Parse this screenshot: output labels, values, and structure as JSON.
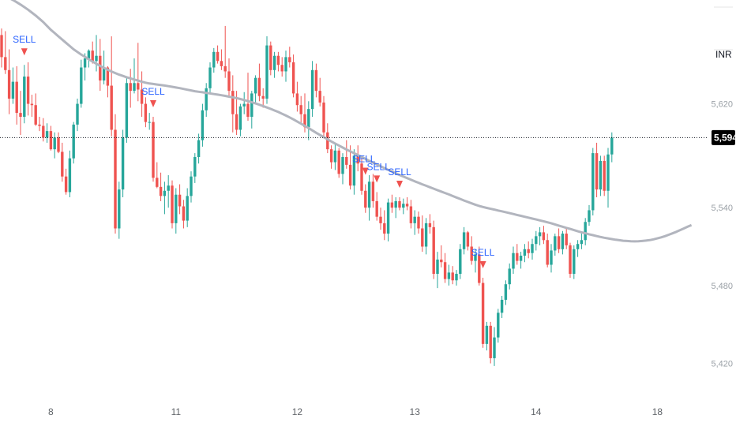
{
  "chart_data": {
    "type": "candlestick",
    "currency": "INR",
    "ylim": [
      5396,
      5700
    ],
    "y_ticks": [
      "5,620",
      "5,540",
      "5,480",
      "5,420"
    ],
    "y_tick_values": [
      5620,
      5540,
      5480,
      5420
    ],
    "x_ticks": [
      "8",
      "11",
      "12",
      "13",
      "14",
      "18"
    ],
    "x_tick_index": [
      13,
      46,
      78,
      109,
      141,
      173
    ],
    "last_price": 5594,
    "last_price_label": "5,594",
    "sell_label": "SELL",
    "sell_signal_index": [
      6,
      40,
      96,
      99,
      105,
      127
    ],
    "sell_label_shift": [
      0,
      0,
      -2,
      2,
      0,
      0
    ],
    "colors": {
      "up": "#26a69a",
      "down": "#ef5350",
      "ma": "#b2b5be",
      "signal": "#2962ff",
      "last_bg": "#000000"
    },
    "candles": [
      [
        5673,
        5678,
        5648,
        5656
      ],
      [
        5656,
        5676,
        5643,
        5646
      ],
      [
        5646,
        5662,
        5612,
        5624
      ],
      [
        5624,
        5648,
        5620,
        5637
      ],
      [
        5637,
        5649,
        5604,
        5613
      ],
      [
        5613,
        5630,
        5596,
        5610
      ],
      [
        5610,
        5650,
        5605,
        5641
      ],
      [
        5641,
        5652,
        5611,
        5620
      ],
      [
        5620,
        5627,
        5610,
        5619
      ],
      [
        5619,
        5628,
        5603,
        5604
      ],
      [
        5604,
        5610,
        5599,
        5603
      ],
      [
        5603,
        5609,
        5591,
        5594
      ],
      [
        5594,
        5605,
        5590,
        5599
      ],
      [
        5599,
        5603,
        5584,
        5585
      ],
      [
        5585,
        5598,
        5578,
        5594
      ],
      [
        5594,
        5598,
        5582,
        5583
      ],
      [
        5583,
        5590,
        5560,
        5564
      ],
      [
        5564,
        5570,
        5550,
        5552
      ],
      [
        5552,
        5584,
        5548,
        5578
      ],
      [
        5578,
        5606,
        5574,
        5604
      ],
      [
        5604,
        5624,
        5599,
        5620
      ],
      [
        5620,
        5654,
        5617,
        5648
      ],
      [
        5648,
        5659,
        5638,
        5655
      ],
      [
        5655,
        5662,
        5648,
        5661
      ],
      [
        5661,
        5668,
        5651,
        5653
      ],
      [
        5653,
        5673,
        5645,
        5657
      ],
      [
        5657,
        5670,
        5630,
        5638
      ],
      [
        5638,
        5661,
        5635,
        5648
      ],
      [
        5648,
        5649,
        5625,
        5634
      ],
      [
        5634,
        5672,
        5595,
        5600
      ],
      [
        5600,
        5612,
        5520,
        5524
      ],
      [
        5524,
        5560,
        5516,
        5554
      ],
      [
        5554,
        5600,
        5548,
        5594
      ],
      [
        5594,
        5640,
        5590,
        5636
      ],
      [
        5636,
        5647,
        5617,
        5630
      ],
      [
        5630,
        5655,
        5628,
        5636
      ],
      [
        5636,
        5667,
        5622,
        5631
      ],
      [
        5631,
        5645,
        5610,
        5620
      ],
      [
        5620,
        5625,
        5602,
        5606
      ],
      [
        5606,
        5613,
        5600,
        5606
      ],
      [
        5606,
        5610,
        5560,
        5563
      ],
      [
        5563,
        5575,
        5555,
        5556
      ],
      [
        5556,
        5567,
        5545,
        5549
      ],
      [
        5549,
        5560,
        5535,
        5553
      ],
      [
        5553,
        5565,
        5540,
        5557
      ],
      [
        5557,
        5561,
        5524,
        5528
      ],
      [
        5528,
        5555,
        5520,
        5550
      ],
      [
        5550,
        5558,
        5535,
        5541
      ],
      [
        5541,
        5546,
        5524,
        5530
      ],
      [
        5530,
        5555,
        5525,
        5549
      ],
      [
        5549,
        5568,
        5544,
        5564
      ],
      [
        5564,
        5582,
        5559,
        5579
      ],
      [
        5579,
        5597,
        5574,
        5592
      ],
      [
        5592,
        5620,
        5587,
        5615
      ],
      [
        5615,
        5636,
        5610,
        5632
      ],
      [
        5632,
        5652,
        5628,
        5648
      ],
      [
        5648,
        5663,
        5644,
        5660
      ],
      [
        5660,
        5665,
        5651,
        5653
      ],
      [
        5653,
        5662,
        5646,
        5649
      ],
      [
        5649,
        5680,
        5640,
        5645
      ],
      [
        5645,
        5655,
        5625,
        5630
      ],
      [
        5630,
        5642,
        5598,
        5612
      ],
      [
        5612,
        5630,
        5596,
        5600
      ],
      [
        5600,
        5620,
        5595,
        5618
      ],
      [
        5618,
        5629,
        5612,
        5620
      ],
      [
        5620,
        5644,
        5607,
        5610
      ],
      [
        5610,
        5630,
        5601,
        5628
      ],
      [
        5628,
        5642,
        5621,
        5640
      ],
      [
        5640,
        5651,
        5622,
        5626
      ],
      [
        5626,
        5632,
        5617,
        5624
      ],
      [
        5624,
        5672,
        5620,
        5665
      ],
      [
        5665,
        5668,
        5642,
        5646
      ],
      [
        5646,
        5660,
        5640,
        5657
      ],
      [
        5657,
        5660,
        5645,
        5650
      ],
      [
        5650,
        5656,
        5641,
        5645
      ],
      [
        5645,
        5661,
        5637,
        5656
      ],
      [
        5656,
        5664,
        5648,
        5652
      ],
      [
        5652,
        5658,
        5625,
        5628
      ],
      [
        5628,
        5637,
        5614,
        5619
      ],
      [
        5619,
        5626,
        5605,
        5612
      ],
      [
        5612,
        5628,
        5598,
        5602
      ],
      [
        5602,
        5622,
        5592,
        5616
      ],
      [
        5616,
        5653,
        5610,
        5646
      ],
      [
        5646,
        5651,
        5625,
        5630
      ],
      [
        5630,
        5640,
        5618,
        5621
      ],
      [
        5621,
        5626,
        5595,
        5598
      ],
      [
        5598,
        5605,
        5582,
        5585
      ],
      [
        5585,
        5588,
        5570,
        5575
      ],
      [
        5575,
        5589,
        5569,
        5584
      ],
      [
        5584,
        5586,
        5563,
        5566
      ],
      [
        5566,
        5582,
        5558,
        5579
      ],
      [
        5579,
        5592,
        5570,
        5573
      ],
      [
        5573,
        5588,
        5554,
        5557
      ],
      [
        5557,
        5585,
        5550,
        5580
      ],
      [
        5580,
        5588,
        5568,
        5574
      ],
      [
        5574,
        5580,
        5550,
        5553
      ],
      [
        5553,
        5558,
        5536,
        5540
      ],
      [
        5540,
        5565,
        5530,
        5560
      ],
      [
        5560,
        5566,
        5540,
        5545
      ],
      [
        5545,
        5552,
        5530,
        5533
      ],
      [
        5533,
        5540,
        5523,
        5528
      ],
      [
        5528,
        5538,
        5515,
        5520
      ],
      [
        5520,
        5547,
        5514,
        5544
      ],
      [
        5544,
        5550,
        5536,
        5540
      ],
      [
        5540,
        5548,
        5532,
        5545
      ],
      [
        5545,
        5548,
        5538,
        5540
      ],
      [
        5540,
        5547,
        5535,
        5543
      ],
      [
        5543,
        5548,
        5538,
        5541
      ],
      [
        5541,
        5546,
        5524,
        5528
      ],
      [
        5528,
        5538,
        5519,
        5533
      ],
      [
        5533,
        5537,
        5520,
        5524
      ],
      [
        5524,
        5534,
        5506,
        5510
      ],
      [
        5510,
        5532,
        5504,
        5528
      ],
      [
        5528,
        5535,
        5520,
        5525
      ],
      [
        5525,
        5530,
        5485,
        5489
      ],
      [
        5489,
        5506,
        5478,
        5500
      ],
      [
        5500,
        5511,
        5494,
        5498
      ],
      [
        5498,
        5505,
        5482,
        5485
      ],
      [
        5485,
        5496,
        5480,
        5490
      ],
      [
        5490,
        5495,
        5481,
        5484
      ],
      [
        5484,
        5492,
        5480,
        5489
      ],
      [
        5489,
        5512,
        5485,
        5508
      ],
      [
        5508,
        5525,
        5504,
        5521
      ],
      [
        5521,
        5522,
        5507,
        5510
      ],
      [
        5510,
        5518,
        5496,
        5499
      ],
      [
        5499,
        5508,
        5490,
        5504
      ],
      [
        5504,
        5510,
        5480,
        5482
      ],
      [
        5482,
        5486,
        5432,
        5435
      ],
      [
        5435,
        5452,
        5430,
        5449
      ],
      [
        5449,
        5452,
        5420,
        5424
      ],
      [
        5424,
        5448,
        5418,
        5440
      ],
      [
        5440,
        5462,
        5436,
        5459
      ],
      [
        5459,
        5472,
        5455,
        5469
      ],
      [
        5469,
        5484,
        5465,
        5481
      ],
      [
        5481,
        5497,
        5477,
        5493
      ],
      [
        5493,
        5510,
        5489,
        5505
      ],
      [
        5505,
        5512,
        5496,
        5499
      ],
      [
        5499,
        5506,
        5493,
        5503
      ],
      [
        5503,
        5512,
        5498,
        5508
      ],
      [
        5508,
        5514,
        5501,
        5505
      ],
      [
        5505,
        5516,
        5500,
        5512
      ],
      [
        5512,
        5522,
        5507,
        5518
      ],
      [
        5518,
        5525,
        5511,
        5521
      ],
      [
        5521,
        5526,
        5512,
        5515
      ],
      [
        5515,
        5520,
        5494,
        5496
      ],
      [
        5496,
        5512,
        5490,
        5507
      ],
      [
        5507,
        5520,
        5503,
        5518
      ],
      [
        5518,
        5524,
        5505,
        5508
      ],
      [
        5508,
        5522,
        5504,
        5520
      ],
      [
        5520,
        5525,
        5508,
        5511
      ],
      [
        5511,
        5513,
        5486,
        5489
      ],
      [
        5489,
        5511,
        5485,
        5508
      ],
      [
        5508,
        5515,
        5502,
        5512
      ],
      [
        5512,
        5520,
        5508,
        5515
      ],
      [
        5515,
        5532,
        5511,
        5529
      ],
      [
        5529,
        5542,
        5526,
        5538
      ],
      [
        5538,
        5586,
        5534,
        5582
      ],
      [
        5582,
        5590,
        5548,
        5554
      ],
      [
        5554,
        5580,
        5549,
        5576
      ],
      [
        5576,
        5580,
        5549,
        5553
      ],
      [
        5553,
        5586,
        5540,
        5581
      ],
      [
        5581,
        5598,
        5575,
        5594
      ]
    ],
    "ma_values": [
      5707.8,
      5707.0,
      5706.0,
      5705.0,
      5704.0,
      5703.0,
      5701.5,
      5700.0,
      5698.3,
      5696.5,
      5694.5,
      5692.5,
      5690.3,
      5688.0,
      5685.5,
      5683.0,
      5680.0,
      5677.0,
      5674.5,
      5672.0,
      5669.5,
      5667.0,
      5664.5,
      5662.0,
      5660.0,
      5658.0,
      5656.2,
      5654.3,
      5652.6,
      5650.9,
      5649.3,
      5647.7,
      5646.3,
      5644.9,
      5643.7,
      5642.5,
      5641.5,
      5640.5,
      5639.6,
      5638.7,
      5637.9,
      5637.0,
      5636.3,
      5635.7,
      5635.3,
      5634.9,
      5634.5,
      5634.1,
      5633.6,
      5633.1,
      5632.6,
      5632.1,
      5631.5,
      5630.9,
      5630.3,
      5629.7,
      5629.3,
      5628.9,
      5628.4,
      5628.0,
      5627.5,
      5627.1,
      5626.6,
      5626.1,
      5625.5,
      5625.0,
      5624.4,
      5623.7,
      5622.9,
      5622.1,
      5621.2,
      5620.3,
      5619.3,
      5618.3,
      5617.2,
      5616.1,
      5614.9,
      5613.7,
      5612.3,
      5611.0,
      5609.5,
      5608.0,
      5606.3,
      5604.7,
      5603.0,
      5601.3,
      5599.5,
      5597.7,
      5596.0,
      5594.3,
      5592.7,
      5591.0,
      5589.4,
      5587.9,
      5586.3,
      5584.8,
      5583.4,
      5581.9,
      5580.5,
      5579.0,
      5577.6,
      5576.1,
      5574.7,
      5573.3,
      5571.9,
      5570.5,
      5569.1,
      5567.8,
      5566.5,
      5565.2,
      5564.0,
      5562.7,
      5561.5,
      5560.3,
      5559.2,
      5558.0,
      5556.9,
      5555.7,
      5554.6,
      5553.5,
      5552.4,
      5551.3,
      5550.2,
      5549.0,
      5547.8,
      5546.7,
      5545.5,
      5544.4,
      5543.3,
      5542.3,
      5541.3,
      5540.5,
      5539.8,
      5539.1,
      5538.5,
      5537.8,
      5537.2,
      5536.5,
      5535.8,
      5535.1,
      5534.4,
      5533.7,
      5533.0,
      5532.3,
      5531.6,
      5530.9,
      5530.2,
      5529.5,
      5528.7,
      5528.0,
      5527.1,
      5526.2,
      5525.3,
      5524.4,
      5523.6,
      5522.7,
      5521.8,
      5521.0,
      5520.3,
      5519.5,
      5518.8,
      5518.1,
      5517.4,
      5516.8,
      5516.3,
      5515.8,
      5515.3,
      5514.9,
      5514.5,
      5514.3,
      5514.1,
      5514.0,
      5514.1,
      5514.3,
      5514.6,
      5515.0,
      5515.6,
      5516.3,
      5517.1,
      5518.0,
      5519.1,
      5520.2,
      5521.4,
      5522.7,
      5524.0,
      5525.3,
      5526.6
    ]
  }
}
